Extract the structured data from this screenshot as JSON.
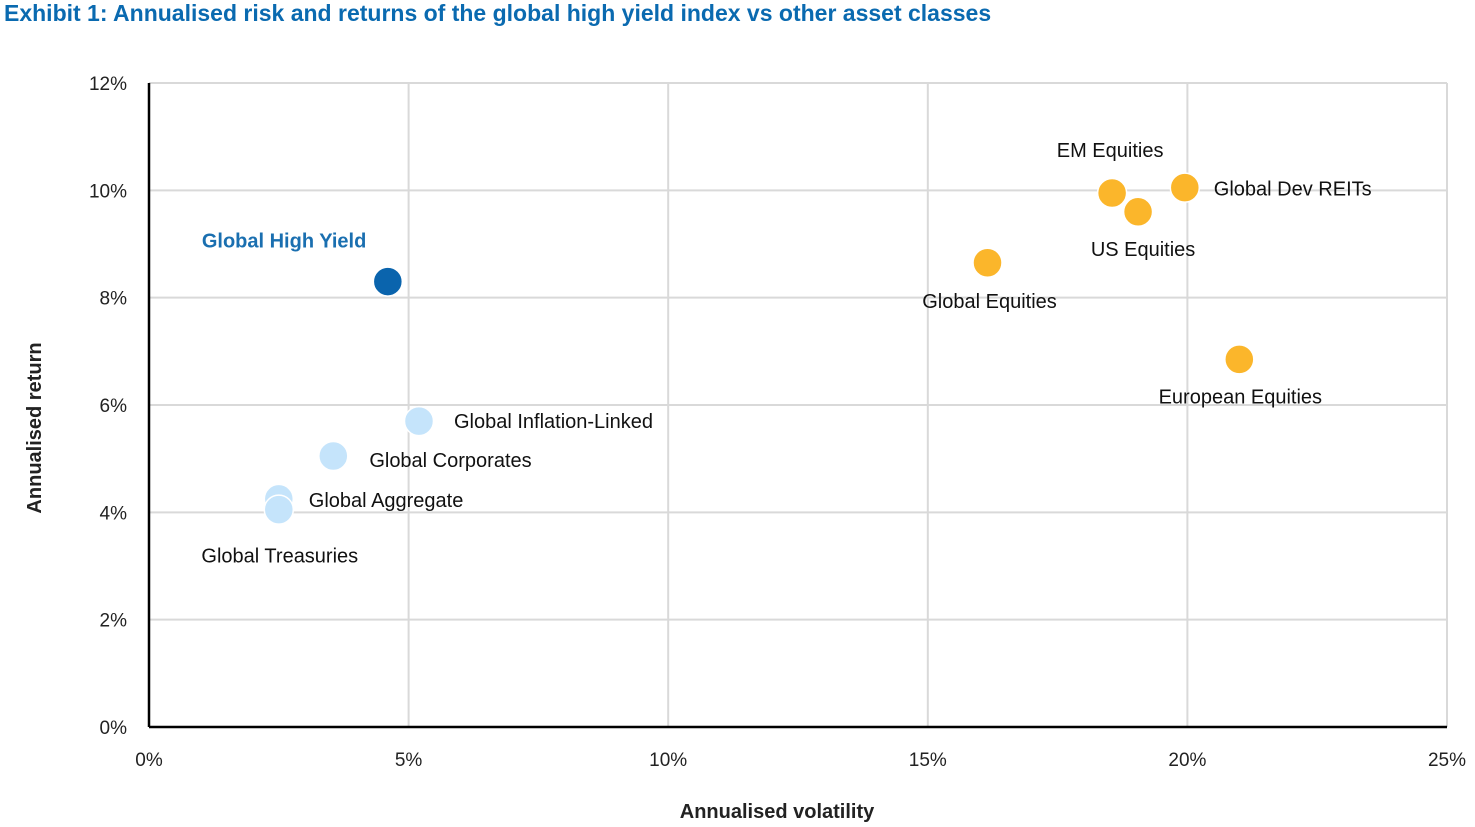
{
  "title": "Exhibit 1: Annualised risk and returns of the global high yield index vs other asset classes",
  "chart_data": {
    "type": "scatter",
    "title": "Exhibit 1: Annualised risk and returns of the global high yield index vs other asset classes",
    "xlabel": "Annualised volatility",
    "ylabel": "Annualised return",
    "xlim": [
      0,
      25
    ],
    "ylim": [
      0,
      12
    ],
    "x_ticks": [
      "0%",
      "5%",
      "10%",
      "15%",
      "20%",
      "25%"
    ],
    "y_ticks": [
      "0%",
      "2%",
      "4%",
      "6%",
      "8%",
      "10%",
      "12%"
    ],
    "grid": true,
    "colors": {
      "highlight": "#0a64ad",
      "fixed_income": "#c5e4fb",
      "equities": "#fbb62b",
      "grid": "#d9d9d9",
      "axis": "#000000"
    },
    "points": [
      {
        "label": "Global High Yield",
        "x": 4.6,
        "y": 8.3,
        "group": "highlight"
      },
      {
        "label": "Global Inflation-Linked",
        "x": 5.2,
        "y": 5.7,
        "group": "fixed_income"
      },
      {
        "label": "Global Corporates",
        "x": 3.55,
        "y": 5.05,
        "group": "fixed_income"
      },
      {
        "label": "Global Aggregate",
        "x": 2.5,
        "y": 4.25,
        "group": "fixed_income"
      },
      {
        "label": "Global Treasuries",
        "x": 2.5,
        "y": 4.05,
        "group": "fixed_income"
      },
      {
        "label": "Global Equities",
        "x": 16.15,
        "y": 8.65,
        "group": "equities"
      },
      {
        "label": "EM Equities",
        "x": 18.55,
        "y": 9.95,
        "group": "equities"
      },
      {
        "label": "US Equities",
        "x": 19.05,
        "y": 9.6,
        "group": "equities"
      },
      {
        "label": "Global Dev REITs",
        "x": 19.95,
        "y": 10.05,
        "group": "equities"
      },
      {
        "label": "European Equities",
        "x": 21.0,
        "y": 6.85,
        "group": "equities"
      }
    ]
  }
}
